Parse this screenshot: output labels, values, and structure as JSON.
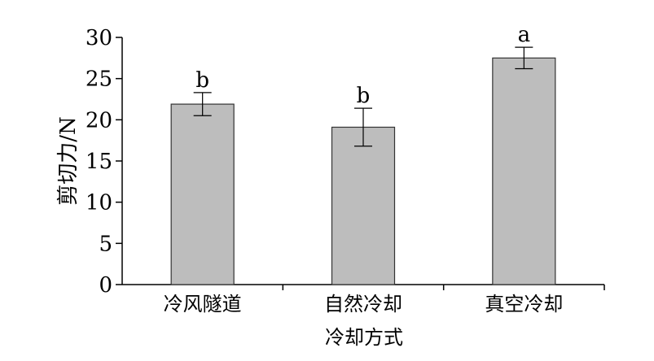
{
  "chart_data": {
    "type": "bar",
    "categories": [
      "冷风隧道",
      "自然冷却",
      "真空冷却"
    ],
    "values": [
      21.9,
      19.1,
      27.5
    ],
    "error": [
      1.4,
      2.3,
      1.3
    ],
    "significance_letters": [
      "b",
      "b",
      "a"
    ],
    "xlabel": "冷却方式",
    "ylabel": "剪切力/N",
    "ylim": [
      0,
      30
    ],
    "yticks": [
      "0",
      "5",
      "10",
      "15",
      "20",
      "25",
      "30"
    ],
    "grid": false,
    "bar_color": "#bdbdbd",
    "bar_edge_color": "#333333"
  }
}
